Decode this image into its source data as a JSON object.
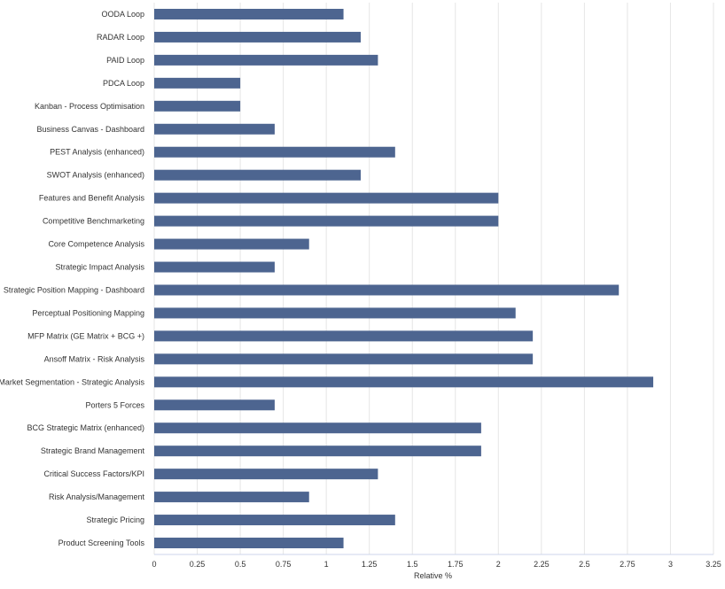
{
  "chart_data": {
    "type": "bar",
    "orientation": "horizontal",
    "title": "",
    "xlabel": "Relative %",
    "ylabel": "",
    "xlim": [
      0,
      3.25
    ],
    "x_ticks": [
      "0",
      "0.25",
      "0.5",
      "0.75",
      "1",
      "1.25",
      "1.5",
      "1.75",
      "2",
      "2.25",
      "2.5",
      "2.75",
      "3",
      "3.25"
    ],
    "grid": true,
    "legend": "none",
    "bar_color": "#4d6590",
    "categories": [
      "OODA Loop",
      "RADAR Loop",
      "PAID Loop",
      "PDCA Loop",
      "Kanban - Process Optimisation",
      "Business Canvas - Dashboard",
      "PEST Analysis (enhanced)",
      "SWOT Analysis (enhanced)",
      "Features and Benefit Analysis",
      "Competitive Benchmarketing",
      "Core Competence Analysis",
      "Strategic Impact Analysis",
      "Strategic Position Mapping - Dashboard",
      "Perceptual Positioning Mapping",
      "MFP Matrix (GE Matrix + BCG +)",
      "Ansoff Matrix - Risk Analysis",
      "Market Segmentation - Strategic Analysis",
      "Porters 5 Forces",
      "BCG Strategic Matrix (enhanced)",
      "Strategic Brand Management",
      "Critical Success Factors/KPI",
      "Risk Analysis/Management",
      "Strategic Pricing",
      "Product Screening Tools"
    ],
    "values": [
      1.1,
      1.2,
      1.3,
      0.5,
      0.5,
      0.7,
      1.4,
      1.2,
      2.0,
      2.0,
      0.9,
      0.7,
      2.7,
      2.1,
      2.2,
      2.2,
      2.9,
      0.7,
      1.9,
      1.9,
      1.3,
      0.9,
      1.4,
      1.1
    ]
  }
}
